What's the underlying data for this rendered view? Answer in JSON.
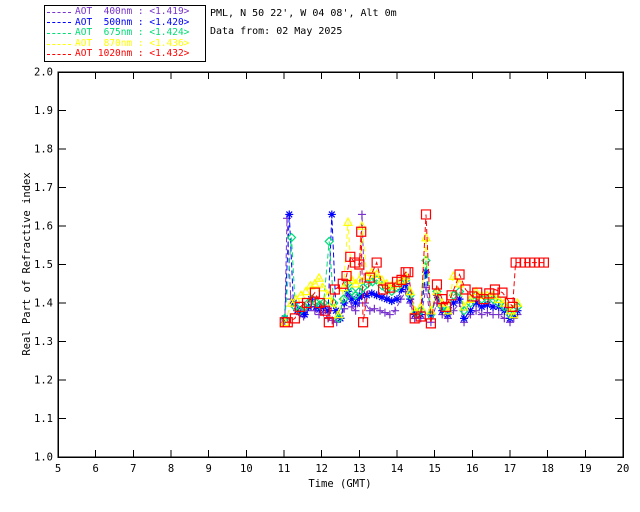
{
  "header": {
    "title_line1": "PML, N 50 22', W 04 08', Alt 0m",
    "title_line2": "Data from: 02 May 2025"
  },
  "colors": {
    "background": "#ffffff",
    "axis": "#000000",
    "text": "#000000",
    "aot400": "#7733CC",
    "aot500": "#0000FF",
    "aot675": "#00DD77",
    "aot870": "#FFFF00",
    "aot1020": "#FF0000"
  },
  "chart_data": {
    "type": "line",
    "title": "",
    "xlabel": "Time (GMT)",
    "ylabel": "Real Part of Refractive index",
    "xlim": [
      5,
      20
    ],
    "ylim": [
      1.0,
      2.0
    ],
    "grid": false,
    "legend_position": "top-left-outside",
    "xticks": [
      5,
      6,
      7,
      8,
      9,
      10,
      11,
      12,
      13,
      14,
      15,
      16,
      17,
      18,
      19,
      20
    ],
    "yticks": [
      "1.0",
      "1.1",
      "1.2",
      "1.3",
      "1.4",
      "1.5",
      "1.6",
      "1.7",
      "1.8",
      "1.9",
      "2.0"
    ],
    "series": [
      {
        "name": "AOT  400nm",
        "legend_value": "<1.419>",
        "color": "#7733CC",
        "marker": "plus",
        "marker_size": 4,
        "points": [
          [
            11.02,
            1.35
          ],
          [
            11.08,
            1.62
          ],
          [
            11.18,
            1.41
          ],
          [
            11.32,
            1.4
          ],
          [
            11.42,
            1.37
          ],
          [
            11.52,
            1.365
          ],
          [
            11.62,
            1.38
          ],
          [
            11.72,
            1.39
          ],
          [
            11.82,
            1.38
          ],
          [
            11.93,
            1.37
          ],
          [
            12.05,
            1.375
          ],
          [
            12.17,
            1.36
          ],
          [
            12.28,
            1.355
          ],
          [
            12.4,
            1.35
          ],
          [
            12.5,
            1.36
          ],
          [
            12.6,
            1.385
          ],
          [
            12.7,
            1.42
          ],
          [
            12.8,
            1.39
          ],
          [
            12.9,
            1.38
          ],
          [
            13.0,
            1.4
          ],
          [
            13.07,
            1.63
          ],
          [
            13.15,
            1.4
          ],
          [
            13.28,
            1.38
          ],
          [
            13.4,
            1.385
          ],
          [
            13.55,
            1.38
          ],
          [
            13.68,
            1.375
          ],
          [
            13.81,
            1.37
          ],
          [
            13.95,
            1.38
          ],
          [
            14.1,
            1.41
          ],
          [
            14.23,
            1.43
          ],
          [
            14.35,
            1.4
          ],
          [
            14.47,
            1.36
          ],
          [
            14.63,
            1.36
          ],
          [
            14.77,
            1.44
          ],
          [
            14.9,
            1.35
          ],
          [
            15.06,
            1.4
          ],
          [
            15.2,
            1.37
          ],
          [
            15.35,
            1.36
          ],
          [
            15.5,
            1.38
          ],
          [
            15.66,
            1.4
          ],
          [
            15.78,
            1.35
          ],
          [
            15.95,
            1.37
          ],
          [
            16.1,
            1.38
          ],
          [
            16.25,
            1.37
          ],
          [
            16.4,
            1.375
          ],
          [
            16.55,
            1.37
          ],
          [
            16.7,
            1.37
          ],
          [
            16.85,
            1.36
          ],
          [
            17.0,
            1.35
          ],
          [
            17.1,
            1.36
          ],
          [
            17.2,
            1.37
          ]
        ]
      },
      {
        "name": "AOT  500nm",
        "legend_value": "<1.420>",
        "color": "#0000FF",
        "marker": "asterisk",
        "marker_size": 4,
        "points": [
          [
            11.02,
            1.36
          ],
          [
            11.14,
            1.63
          ],
          [
            11.25,
            1.4
          ],
          [
            11.35,
            1.38
          ],
          [
            11.45,
            1.375
          ],
          [
            11.55,
            1.37
          ],
          [
            11.65,
            1.39
          ],
          [
            11.72,
            1.41
          ],
          [
            11.85,
            1.39
          ],
          [
            11.95,
            1.385
          ],
          [
            12.05,
            1.39
          ],
          [
            12.17,
            1.38
          ],
          [
            12.27,
            1.63
          ],
          [
            12.38,
            1.38
          ],
          [
            12.5,
            1.36
          ],
          [
            12.6,
            1.4
          ],
          [
            12.7,
            1.43
          ],
          [
            12.8,
            1.41
          ],
          [
            12.9,
            1.4
          ],
          [
            13.0,
            1.415
          ],
          [
            13.07,
            1.42
          ],
          [
            13.2,
            1.42
          ],
          [
            13.33,
            1.425
          ],
          [
            13.46,
            1.42
          ],
          [
            13.6,
            1.415
          ],
          [
            13.73,
            1.41
          ],
          [
            13.86,
            1.405
          ],
          [
            14.0,
            1.41
          ],
          [
            14.12,
            1.435
          ],
          [
            14.23,
            1.45
          ],
          [
            14.35,
            1.41
          ],
          [
            14.47,
            1.37
          ],
          [
            14.63,
            1.37
          ],
          [
            14.77,
            1.48
          ],
          [
            14.9,
            1.37
          ],
          [
            15.06,
            1.42
          ],
          [
            15.2,
            1.38
          ],
          [
            15.35,
            1.37
          ],
          [
            15.5,
            1.4
          ],
          [
            15.66,
            1.41
          ],
          [
            15.78,
            1.36
          ],
          [
            15.95,
            1.38
          ],
          [
            16.1,
            1.4
          ],
          [
            16.25,
            1.39
          ],
          [
            16.4,
            1.395
          ],
          [
            16.55,
            1.39
          ],
          [
            16.7,
            1.39
          ],
          [
            16.85,
            1.38
          ],
          [
            17.0,
            1.36
          ],
          [
            17.1,
            1.37
          ],
          [
            17.2,
            1.38
          ]
        ]
      },
      {
        "name": "AOT  675nm",
        "legend_value": "<1.424>",
        "color": "#00DD77",
        "marker": "diamond",
        "marker_size": 4,
        "points": [
          [
            11.02,
            1.36
          ],
          [
            11.2,
            1.57
          ],
          [
            11.3,
            1.39
          ],
          [
            11.42,
            1.38
          ],
          [
            11.55,
            1.39
          ],
          [
            11.65,
            1.4
          ],
          [
            11.75,
            1.41
          ],
          [
            11.85,
            1.4
          ],
          [
            11.95,
            1.395
          ],
          [
            12.05,
            1.4
          ],
          [
            12.2,
            1.56
          ],
          [
            12.32,
            1.4
          ],
          [
            12.45,
            1.36
          ],
          [
            12.58,
            1.41
          ],
          [
            12.7,
            1.45
          ],
          [
            12.8,
            1.43
          ],
          [
            12.9,
            1.42
          ],
          [
            13.0,
            1.43
          ],
          [
            13.1,
            1.44
          ],
          [
            13.22,
            1.45
          ],
          [
            13.35,
            1.455
          ],
          [
            13.46,
            1.46
          ],
          [
            13.6,
            1.445
          ],
          [
            13.73,
            1.435
          ],
          [
            13.86,
            1.43
          ],
          [
            14.0,
            1.44
          ],
          [
            14.12,
            1.455
          ],
          [
            14.23,
            1.46
          ],
          [
            14.35,
            1.42
          ],
          [
            14.5,
            1.375
          ],
          [
            14.63,
            1.38
          ],
          [
            14.77,
            1.51
          ],
          [
            14.9,
            1.37
          ],
          [
            15.06,
            1.43
          ],
          [
            15.2,
            1.39
          ],
          [
            15.35,
            1.38
          ],
          [
            15.5,
            1.42
          ],
          [
            15.66,
            1.43
          ],
          [
            15.78,
            1.38
          ],
          [
            15.95,
            1.4
          ],
          [
            16.1,
            1.42
          ],
          [
            16.25,
            1.41
          ],
          [
            16.4,
            1.41
          ],
          [
            16.55,
            1.41
          ],
          [
            16.7,
            1.4
          ],
          [
            16.85,
            1.39
          ],
          [
            17.0,
            1.37
          ],
          [
            17.1,
            1.38
          ],
          [
            17.2,
            1.39
          ]
        ]
      },
      {
        "name": "AOT  870nm",
        "legend_value": "<1.436>",
        "color": "#FFFF00",
        "marker": "triangle",
        "marker_size": 4,
        "points": [
          [
            11.02,
            1.35
          ],
          [
            11.2,
            1.4
          ],
          [
            11.32,
            1.41
          ],
          [
            11.45,
            1.42
          ],
          [
            11.58,
            1.43
          ],
          [
            11.7,
            1.445
          ],
          [
            11.82,
            1.45
          ],
          [
            11.93,
            1.465
          ],
          [
            12.03,
            1.44
          ],
          [
            12.17,
            1.42
          ],
          [
            12.28,
            1.4
          ],
          [
            12.45,
            1.37
          ],
          [
            12.58,
            1.44
          ],
          [
            12.7,
            1.61
          ],
          [
            12.8,
            1.46
          ],
          [
            12.9,
            1.45
          ],
          [
            13.0,
            1.46
          ],
          [
            13.07,
            1.6
          ],
          [
            13.2,
            1.47
          ],
          [
            13.33,
            1.48
          ],
          [
            13.46,
            1.475
          ],
          [
            13.6,
            1.46
          ],
          [
            13.73,
            1.45
          ],
          [
            13.86,
            1.445
          ],
          [
            14.0,
            1.45
          ],
          [
            14.12,
            1.46
          ],
          [
            14.23,
            1.47
          ],
          [
            14.35,
            1.43
          ],
          [
            14.47,
            1.38
          ],
          [
            14.63,
            1.39
          ],
          [
            14.77,
            1.57
          ],
          [
            14.9,
            1.38
          ],
          [
            15.06,
            1.43
          ],
          [
            15.2,
            1.4
          ],
          [
            15.35,
            1.38
          ],
          [
            15.5,
            1.47
          ],
          [
            15.66,
            1.45
          ],
          [
            15.78,
            1.39
          ],
          [
            15.95,
            1.41
          ],
          [
            16.1,
            1.43
          ],
          [
            16.25,
            1.42
          ],
          [
            16.4,
            1.42
          ],
          [
            16.55,
            1.42
          ],
          [
            16.7,
            1.41
          ],
          [
            16.85,
            1.4
          ],
          [
            17.0,
            1.38
          ],
          [
            17.1,
            1.37
          ],
          [
            17.2,
            1.4
          ]
        ]
      },
      {
        "name": "AOT 1020nm",
        "legend_value": "<1.432>",
        "color": "#FF0000",
        "marker": "square",
        "marker_size": 4.5,
        "points": [
          [
            11.02,
            1.35
          ],
          [
            11.1,
            1.35
          ],
          [
            11.29,
            1.36
          ],
          [
            11.42,
            1.39
          ],
          [
            11.61,
            1.4
          ],
          [
            11.82,
            1.427
          ],
          [
            11.95,
            1.4
          ],
          [
            12.09,
            1.38
          ],
          [
            12.19,
            1.35
          ],
          [
            12.35,
            1.435
          ],
          [
            12.56,
            1.45
          ],
          [
            12.66,
            1.47
          ],
          [
            12.76,
            1.52
          ],
          [
            12.88,
            1.505
          ],
          [
            13.0,
            1.5
          ],
          [
            13.05,
            1.585
          ],
          [
            13.1,
            1.35
          ],
          [
            13.28,
            1.466
          ],
          [
            13.46,
            1.505
          ],
          [
            13.63,
            1.435
          ],
          [
            13.81,
            1.44
          ],
          [
            14.0,
            1.455
          ],
          [
            14.12,
            1.46
          ],
          [
            14.23,
            1.48
          ],
          [
            14.3,
            1.48
          ],
          [
            14.47,
            1.36
          ],
          [
            14.63,
            1.365
          ],
          [
            14.77,
            1.63
          ],
          [
            14.9,
            1.347
          ],
          [
            15.06,
            1.448
          ],
          [
            15.2,
            1.41
          ],
          [
            15.3,
            1.39
          ],
          [
            15.45,
            1.42
          ],
          [
            15.66,
            1.474
          ],
          [
            15.82,
            1.435
          ],
          [
            16.0,
            1.417
          ],
          [
            16.13,
            1.427
          ],
          [
            16.3,
            1.41
          ],
          [
            16.45,
            1.425
          ],
          [
            16.6,
            1.435
          ],
          [
            16.8,
            1.427
          ],
          [
            17.0,
            1.4
          ],
          [
            17.07,
            1.39
          ],
          [
            17.15,
            1.505
          ],
          [
            17.28,
            1.505
          ],
          [
            17.4,
            1.505
          ],
          [
            17.53,
            1.505
          ],
          [
            17.65,
            1.505
          ],
          [
            17.78,
            1.505
          ],
          [
            17.9,
            1.505
          ]
        ]
      }
    ]
  }
}
